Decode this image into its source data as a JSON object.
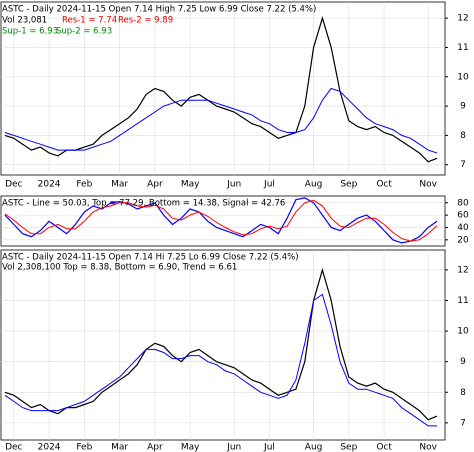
{
  "chart_data": [
    {
      "type": "line",
      "title": "ASTC - Daily 2024-11-15 Open 7.14 High 7.25 Low 6.99 Close 7.22 (5.4%)",
      "annotations": [
        "Vol 23,081",
        "Res-1 = 7.74",
        "Res-2 = 9.89",
        "Sup-1 = 6.93",
        "Sup-2 = 6.93"
      ],
      "categories": [
        null,
        "Dec",
        null,
        null,
        null,
        "2024",
        null,
        null,
        null,
        "Feb",
        null,
        null,
        null,
        "Mar",
        null,
        null,
        null,
        "Apr",
        null,
        null,
        null,
        "May",
        null,
        null,
        null,
        null,
        "Jun",
        null,
        null,
        null,
        "Jul",
        null,
        null,
        null,
        null,
        "Aug",
        null,
        null,
        null,
        "Sep",
        null,
        null,
        null,
        "Oct",
        null,
        null,
        null,
        null,
        "Nov",
        null
      ],
      "series": [
        {
          "color": "#000000",
          "values": [
            8.0,
            7.9,
            7.7,
            7.5,
            7.6,
            7.4,
            7.3,
            7.5,
            7.5,
            7.6,
            7.7,
            8.0,
            8.2,
            8.4,
            8.6,
            8.9,
            9.4,
            9.6,
            9.5,
            9.2,
            9.0,
            9.3,
            9.4,
            9.2,
            9.0,
            8.9,
            8.8,
            8.6,
            8.4,
            8.3,
            8.1,
            7.9,
            8.0,
            8.1,
            9.0,
            11.0,
            12.0,
            11.0,
            9.5,
            8.5,
            8.3,
            8.2,
            8.3,
            8.1,
            8.0,
            7.8,
            7.6,
            7.4,
            7.1,
            7.22
          ]
        },
        {
          "color": "#0000ff",
          "values": [
            8.1,
            8.0,
            7.9,
            7.8,
            7.7,
            7.6,
            7.5,
            7.5,
            7.5,
            7.5,
            7.6,
            7.7,
            7.8,
            8.0,
            8.2,
            8.4,
            8.6,
            8.8,
            9.0,
            9.1,
            9.2,
            9.2,
            9.2,
            9.2,
            9.1,
            9.0,
            8.9,
            8.8,
            8.7,
            8.5,
            8.4,
            8.2,
            8.1,
            8.1,
            8.2,
            8.6,
            9.2,
            9.6,
            9.5,
            9.2,
            8.9,
            8.6,
            8.4,
            8.3,
            8.2,
            8.0,
            7.9,
            7.7,
            7.5,
            7.4
          ]
        }
      ],
      "ylim": [
        6.65,
        12.55
      ],
      "yticks": [
        7,
        8,
        9,
        10,
        11,
        12
      ]
    },
    {
      "type": "line",
      "title": "ASTC - Line = 50.03, Top = 77.29, Bottom = 14.38, Signal = 42.76",
      "series": [
        {
          "color": "#0000ff",
          "values": [
            60,
            45,
            30,
            25,
            35,
            50,
            40,
            30,
            45,
            65,
            75,
            70,
            80,
            82,
            78,
            70,
            75,
            80,
            60,
            45,
            55,
            70,
            65,
            50,
            40,
            35,
            30,
            25,
            35,
            45,
            40,
            30,
            55,
            85,
            88,
            80,
            60,
            40,
            35,
            45,
            55,
            60,
            50,
            35,
            20,
            15,
            18,
            25,
            40,
            50
          ]
        },
        {
          "color": "#ff0000",
          "values": [
            62,
            52,
            40,
            30,
            30,
            40,
            45,
            38,
            38,
            50,
            65,
            72,
            75,
            80,
            80,
            75,
            73,
            76,
            70,
            55,
            52,
            60,
            65,
            58,
            48,
            40,
            33,
            28,
            30,
            38,
            42,
            38,
            42,
            65,
            80,
            84,
            75,
            55,
            42,
            40,
            48,
            55,
            55,
            45,
            32,
            22,
            18,
            20,
            30,
            43
          ]
        }
      ],
      "ylim": [
        10,
        91
      ],
      "yticks": [
        20,
        40,
        60,
        80
      ]
    },
    {
      "type": "line",
      "title": "ASTC - Daily 2024-11-15 Open 7.14 Hi 7.25 Lo 6.99 Close 7.22 (5.4%)",
      "annotations": [
        "Vol 2,308,100 Top = 8.38, Bottom = 6.90, Trend = 6.61"
      ],
      "categories": [
        null,
        "Dec",
        null,
        null,
        null,
        "2024",
        null,
        null,
        null,
        "Feb",
        null,
        null,
        null,
        "Mar",
        null,
        null,
        null,
        "Apr",
        null,
        null,
        null,
        "May",
        null,
        null,
        null,
        null,
        "Jun",
        null,
        null,
        null,
        "Jul",
        null,
        null,
        null,
        null,
        "Aug",
        null,
        null,
        null,
        "Sep",
        null,
        null,
        null,
        "Oct",
        null,
        null,
        null,
        null,
        "Nov",
        null
      ],
      "series": [
        {
          "color": "#000000",
          "values": [
            8.0,
            7.9,
            7.7,
            7.5,
            7.6,
            7.4,
            7.3,
            7.5,
            7.5,
            7.6,
            7.7,
            8.0,
            8.2,
            8.4,
            8.6,
            8.9,
            9.4,
            9.6,
            9.5,
            9.2,
            9.0,
            9.3,
            9.4,
            9.2,
            9.0,
            8.9,
            8.8,
            8.6,
            8.4,
            8.3,
            8.1,
            7.9,
            8.0,
            8.1,
            9.0,
            11.0,
            12.0,
            11.0,
            9.5,
            8.5,
            8.3,
            8.2,
            8.3,
            8.1,
            8.0,
            7.8,
            7.6,
            7.4,
            7.1,
            7.22
          ]
        },
        {
          "color": "#0000ff",
          "values": [
            7.9,
            7.7,
            7.5,
            7.4,
            7.4,
            7.4,
            7.4,
            7.5,
            7.6,
            7.7,
            7.9,
            8.1,
            8.3,
            8.5,
            8.8,
            9.1,
            9.4,
            9.4,
            9.3,
            9.1,
            9.1,
            9.2,
            9.2,
            9.0,
            8.9,
            8.7,
            8.6,
            8.4,
            8.2,
            8.0,
            7.9,
            7.8,
            7.9,
            8.4,
            9.6,
            11.0,
            11.2,
            10.2,
            9.0,
            8.3,
            8.1,
            8.1,
            8.0,
            7.9,
            7.8,
            7.5,
            7.3,
            7.1,
            6.9,
            6.9
          ]
        }
      ],
      "ylim": [
        6.44,
        12.65
      ],
      "yticks": [
        7,
        8,
        9,
        10,
        11,
        12
      ]
    }
  ]
}
